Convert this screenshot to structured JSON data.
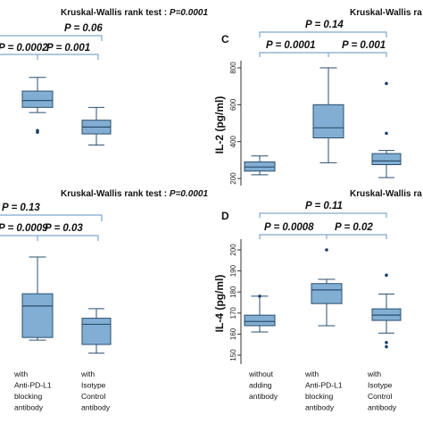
{
  "chart_data": [
    {
      "id": "partial-top-left",
      "type": "box",
      "title": "Kruskal-Wallis rank test : P=0.0001",
      "title_parts": {
        "label": "Kruskal-Wallis rank test :",
        "p": "P=0.0001"
      },
      "brackets": [
        {
          "text": "P  =  0.06",
          "level": 1,
          "from": 0,
          "to": 2
        },
        {
          "text": "P  =  0.0002",
          "level": 2,
          "from": 0,
          "to": 1
        },
        {
          "text": "P  =  0.001",
          "level": 2,
          "from": 1,
          "to": 2
        }
      ],
      "boxes": [
        {
          "category_index": 1,
          "q1": 0.58,
          "median": 0.66,
          "q3": 0.77,
          "whisker_low": 0.52,
          "whisker_high": 0.93,
          "outliers": [
            0.29,
            0.31
          ]
        },
        {
          "category_index": 2,
          "q1": 0.27,
          "median": 0.35,
          "q3": 0.43,
          "whisker_low": 0.14,
          "whisker_high": 0.58,
          "outliers": []
        }
      ]
    },
    {
      "id": "C",
      "type": "box",
      "panel_label": "C",
      "title": "Kruskal-Wallis ra",
      "ylabel": "IL-2 (pg/ml)",
      "yticks": [
        200,
        400,
        600,
        800
      ],
      "ylim": [
        180,
        860
      ],
      "brackets": [
        {
          "text": "P  =  0.14",
          "level": 1,
          "from": 0,
          "to": 2
        },
        {
          "text": "P  =  0.0001",
          "level": 2,
          "from": 0,
          "to": 1
        },
        {
          "text": "P  =  0.001",
          "level": 2,
          "from": 1,
          "to": 2
        }
      ],
      "boxes": [
        {
          "category_index": 0,
          "q1": 240,
          "median": 262,
          "q3": 290,
          "whisker_low": 220,
          "whisker_high": 322,
          "outliers": []
        },
        {
          "category_index": 1,
          "q1": 420,
          "median": 475,
          "q3": 600,
          "whisker_low": 285,
          "whisker_high": 800,
          "outliers": []
        },
        {
          "category_index": 2,
          "q1": 275,
          "median": 295,
          "q3": 335,
          "whisker_low": 205,
          "whisker_high": 352,
          "outliers": [
            445,
            715
          ]
        }
      ]
    },
    {
      "id": "partial-bottom-left",
      "type": "box",
      "title": "Kruskal-Wallis rank test : P=0.0001",
      "title_parts": {
        "label": "Kruskal-Wallis rank test :",
        "p": "P=0.0001"
      },
      "brackets": [
        {
          "text": "P  =  0.13",
          "level": 1,
          "from": 0,
          "to": 2
        },
        {
          "text": "P  =  0.0009",
          "level": 2,
          "from": 0,
          "to": 1
        },
        {
          "text": "P  =  0.03",
          "level": 2,
          "from": 1,
          "to": 2
        }
      ],
      "boxes": [
        {
          "category_index": 1,
          "q1": 0.08,
          "median": 0.44,
          "q3": 0.58,
          "whisker_low": 0.05,
          "whisker_high": 1.0,
          "outliers": []
        },
        {
          "category_index": 2,
          "q1": 0.0,
          "median": 0.23,
          "q3": 0.3,
          "whisker_low": -0.1,
          "whisker_high": 0.41,
          "outliers": []
        }
      ],
      "categories": [
        "with Anti-PD-L1 blocking antibody",
        "with Isotype Control antibody"
      ]
    },
    {
      "id": "D",
      "type": "box",
      "panel_label": "D",
      "title": "Kruskal-Wallis ra",
      "ylabel": "IL-4 (pg/ml)",
      "yticks": [
        150,
        160,
        170,
        180,
        190,
        200
      ],
      "ylim": [
        147,
        204
      ],
      "brackets": [
        {
          "text": "P  =  0.11",
          "level": 1,
          "from": 0,
          "to": 2
        },
        {
          "text": "P  =  0.0008",
          "level": 2,
          "from": 0,
          "to": 1
        },
        {
          "text": "P  =  0.02",
          "level": 2,
          "from": 1,
          "to": 2
        }
      ],
      "boxes": [
        {
          "category_index": 0,
          "q1": 164,
          "median": 166,
          "q3": 169,
          "whisker_low": 161,
          "whisker_high": 178,
          "outliers": [
            178
          ]
        },
        {
          "category_index": 1,
          "q1": 174.5,
          "median": 181,
          "q3": 184,
          "whisker_low": 164,
          "whisker_high": 186,
          "outliers": [
            200
          ]
        },
        {
          "category_index": 2,
          "q1": 166.5,
          "median": 169,
          "q3": 172,
          "whisker_low": 160.5,
          "whisker_high": 179,
          "outliers": [
            188,
            156,
            154
          ]
        }
      ],
      "categories": [
        "without adding antibody",
        "with Anti-PD-L1 blocking antibody",
        "with Isotype Control antibody"
      ]
    }
  ],
  "x_labels_left": [
    [
      "with",
      "Anti-PD-L1",
      "blocking",
      "antibody"
    ],
    [
      "with",
      "Isotype",
      "Control",
      "antibody"
    ]
  ],
  "x_labels_right": [
    [
      "without",
      "adding",
      "antibody"
    ],
    [
      "with",
      "Anti-PD-L1",
      "blocking",
      "antibody"
    ],
    [
      "with",
      "Isotype",
      "Control",
      "antibody"
    ]
  ],
  "colors": {
    "box_fill": "#82aed3",
    "box_edge": "#2b4f6e",
    "bracket": "#7fa6c9",
    "outlier": "#1f3f66"
  }
}
